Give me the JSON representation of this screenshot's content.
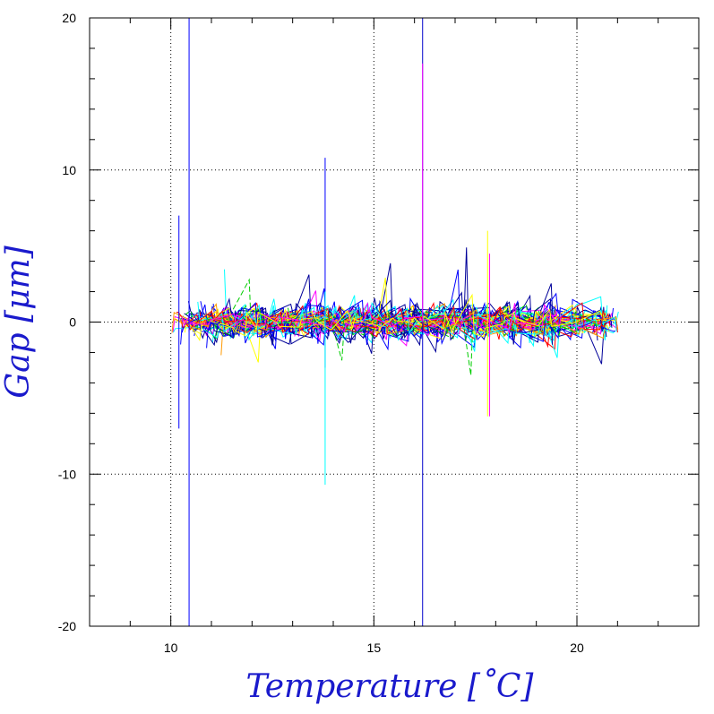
{
  "chart_data": {
    "type": "line",
    "title": "",
    "xlabel": "Temperature [˚C]",
    "ylabel": "Gap [μm]",
    "xlim": [
      8,
      23
    ],
    "ylim": [
      -20,
      20
    ],
    "x_ticks": [
      "10",
      "15",
      "20"
    ],
    "y_ticks": [
      "-20",
      "-10",
      "0",
      "10",
      "20"
    ],
    "grid": "dotted at labeled ticks",
    "legend": "none",
    "series_colors": [
      "#0000ff",
      "#00ffff",
      "#00cc00",
      "#ff0000",
      "#ff00ff",
      "#ffff00",
      "#000099",
      "#ff9900"
    ],
    "x_clusters": [
      10.2,
      10.6,
      11.0,
      11.4,
      11.8,
      12.2,
      12.6,
      13.0,
      13.4,
      13.8,
      14.2,
      14.6,
      15.0,
      15.4,
      15.8,
      16.2,
      16.6,
      17.0,
      17.4,
      17.8,
      18.2,
      18.6,
      19.0,
      19.4,
      20.0,
      20.5,
      20.8
    ],
    "spikes": [
      {
        "x": 10.45,
        "y_min": -20,
        "y_max": 20,
        "color": "#0000ff"
      },
      {
        "x": 16.2,
        "y_min": -20,
        "y_max": 20,
        "color": "#0000cc"
      },
      {
        "x": 16.2,
        "y_min": 0,
        "y_max": 17,
        "color": "#ff00ff"
      },
      {
        "x": 13.8,
        "y_min": -3,
        "y_max": 10.8,
        "color": "#0000ff"
      },
      {
        "x": 13.8,
        "y_min": -10.7,
        "y_max": 2,
        "color": "#00ffff"
      },
      {
        "x": 10.2,
        "y_min": -7,
        "y_max": 7,
        "color": "#0000ff"
      },
      {
        "x": 17.8,
        "y_min": -6.2,
        "y_max": 6,
        "color": "#ffff00"
      },
      {
        "x": 17.85,
        "y_min": -6.2,
        "y_max": 4.5,
        "color": "#ff00ff"
      }
    ]
  }
}
